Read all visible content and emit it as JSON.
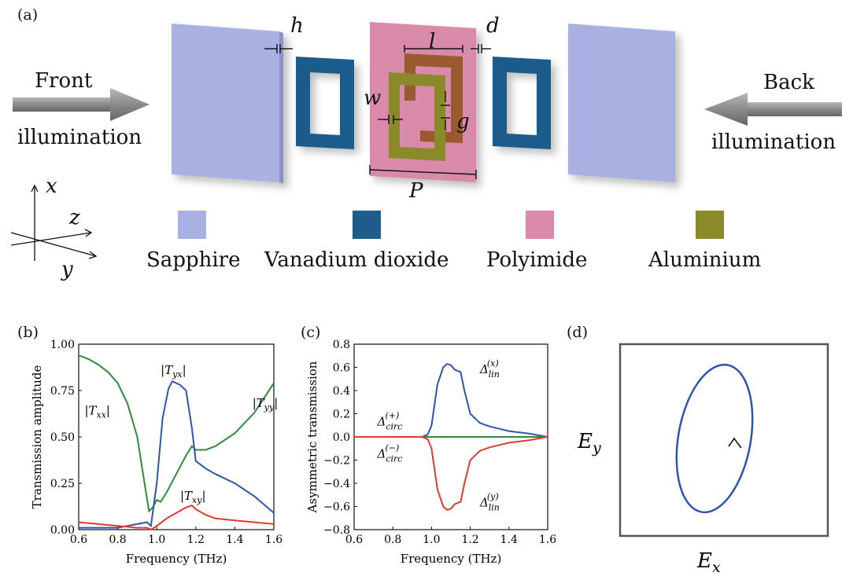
{
  "panel_a": {
    "label": "(a)",
    "front_label": "Front",
    "front_sub": "illumination",
    "back_label": "Back",
    "back_sub": "illumination",
    "dims": {
      "h": "h",
      "d": "d",
      "l": "l",
      "w": "w",
      "g": "g",
      "P": "P"
    },
    "axes": {
      "x": "x",
      "y": "y",
      "z": "z"
    },
    "legend": [
      {
        "name": "Sapphire",
        "color": "#a9b1e3"
      },
      {
        "name": "Vanadium dioxide",
        "color": "#1f5c8c"
      },
      {
        "name": "Polyimide",
        "color": "#d98aa8"
      },
      {
        "name": "Aluminium",
        "color": "#8a8a2a"
      }
    ]
  },
  "chart_data": [
    {
      "panel": "(b)",
      "type": "line",
      "xlabel": "Frequency (THz)",
      "ylabel": "Transmission amplitude",
      "xlim": [
        0.6,
        1.6
      ],
      "ylim": [
        0,
        1.0
      ],
      "xticks": [
        "0.6",
        "0.8",
        "1.0",
        "1.2",
        "1.4",
        "1.6"
      ],
      "yticks": [
        "0.00",
        "0.25",
        "0.50",
        "0.75",
        "1.00"
      ],
      "annotations": [
        "|T_xx|",
        "|T_yx|",
        "|T_yy|",
        "|T_xy|"
      ],
      "series": [
        {
          "name": "|T_xx|, |T_yy|",
          "color": "#2e8b3a",
          "x": [
            0.6,
            0.65,
            0.7,
            0.75,
            0.8,
            0.85,
            0.9,
            0.93,
            0.96,
            0.98,
            1.0,
            1.02,
            1.05,
            1.1,
            1.15,
            1.18,
            1.2,
            1.25,
            1.3,
            1.4,
            1.5,
            1.6
          ],
          "y": [
            0.94,
            0.92,
            0.89,
            0.85,
            0.79,
            0.68,
            0.5,
            0.3,
            0.1,
            0.12,
            0.16,
            0.15,
            0.2,
            0.3,
            0.4,
            0.45,
            0.43,
            0.43,
            0.45,
            0.52,
            0.63,
            0.79
          ]
        },
        {
          "name": "|T_yx|",
          "color": "#2d55b0",
          "x": [
            0.6,
            0.7,
            0.8,
            0.9,
            0.95,
            0.97,
            1.0,
            1.03,
            1.06,
            1.08,
            1.12,
            1.15,
            1.18,
            1.2,
            1.25,
            1.3,
            1.4,
            1.5,
            1.6
          ],
          "y": [
            0.01,
            0.01,
            0.01,
            0.03,
            0.04,
            0.02,
            0.25,
            0.6,
            0.76,
            0.8,
            0.78,
            0.75,
            0.55,
            0.37,
            0.33,
            0.3,
            0.25,
            0.18,
            0.09
          ]
        },
        {
          "name": "|T_xy|",
          "color": "#e23b2e",
          "x": [
            0.6,
            0.7,
            0.8,
            0.9,
            0.95,
            0.97,
            1.0,
            1.05,
            1.1,
            1.15,
            1.18,
            1.2,
            1.25,
            1.3,
            1.4,
            1.5,
            1.6
          ],
          "y": [
            0.04,
            0.03,
            0.02,
            0.01,
            0.01,
            0.0,
            0.02,
            0.06,
            0.09,
            0.12,
            0.13,
            0.11,
            0.08,
            0.06,
            0.05,
            0.04,
            0.03
          ]
        }
      ]
    },
    {
      "panel": "(c)",
      "type": "line",
      "xlabel": "Frequency (THz)",
      "ylabel": "Asymmetric transmission",
      "xlim": [
        0.6,
        1.6
      ],
      "ylim": [
        -0.8,
        0.8
      ],
      "xticks": [
        "0.6",
        "0.8",
        "1.0",
        "1.2",
        "1.4",
        "1.6"
      ],
      "yticks": [
        "−0.8",
        "−0.6",
        "−0.4",
        "−0.2",
        "0.0",
        "0.2",
        "0.4",
        "0.6",
        "0.8"
      ],
      "annotations": [
        "Δ_lin^(x)",
        "Δ_circ^(+)",
        "Δ_circ^(−)",
        "Δ_lin^(y)"
      ],
      "series": [
        {
          "name": "Δ_lin^(x)",
          "color": "#2d55b0",
          "x": [
            0.6,
            0.8,
            0.95,
            0.98,
            1.0,
            1.03,
            1.06,
            1.08,
            1.1,
            1.12,
            1.15,
            1.17,
            1.2,
            1.25,
            1.3,
            1.4,
            1.5,
            1.6
          ],
          "y": [
            0,
            0,
            0.0,
            0.02,
            0.1,
            0.45,
            0.6,
            0.63,
            0.62,
            0.58,
            0.56,
            0.4,
            0.2,
            0.12,
            0.09,
            0.05,
            0.03,
            0.0
          ]
        },
        {
          "name": "Δ_circ",
          "color": "#2e8b3a",
          "x": [
            0.6,
            1.6
          ],
          "y": [
            0,
            0
          ]
        },
        {
          "name": "Δ_lin^(y)",
          "color": "#e23b2e",
          "x": [
            0.6,
            0.8,
            0.95,
            0.98,
            1.0,
            1.03,
            1.06,
            1.08,
            1.1,
            1.12,
            1.15,
            1.17,
            1.2,
            1.25,
            1.3,
            1.4,
            1.5,
            1.6
          ],
          "y": [
            0,
            0,
            0.0,
            -0.02,
            -0.1,
            -0.45,
            -0.6,
            -0.63,
            -0.62,
            -0.58,
            -0.56,
            -0.4,
            -0.2,
            -0.12,
            -0.09,
            -0.05,
            -0.03,
            0.0
          ]
        }
      ]
    }
  ],
  "panel_d": {
    "label": "(d)",
    "xlabel": "E_x",
    "ylabel": "E_y",
    "ellipse_color": "#2d55b0"
  }
}
